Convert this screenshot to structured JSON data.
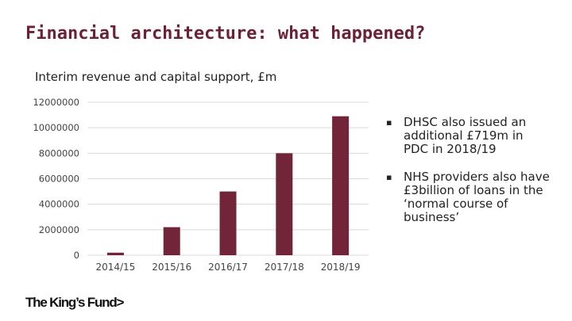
{
  "title": "Financial architecture: what happened?",
  "subtitle": "Interim revenue and capital support, £m",
  "bullets": [
    "DHSC also issued an additional £719m in PDC in 2018/19",
    "NHS providers also have £3billion of loans in the ‘normal course of business’"
  ],
  "logo": "The King’s Fund>",
  "colors": {
    "title": "#6b2237",
    "bar": "#722438",
    "grid": "#d9d9d9"
  },
  "chart_data": {
    "type": "bar",
    "categories": [
      "2014/15",
      "2015/16",
      "2016/17",
      "2017/18",
      "2018/19"
    ],
    "series": [
      {
        "values": [
          200000,
          2200000,
          5000000,
          8000000,
          10900000
        ]
      }
    ],
    "yticks": [
      "0",
      "2000000",
      "4000000",
      "6000000",
      "8000000",
      "10000000",
      "12000000"
    ],
    "ylim": [
      0,
      12000000
    ],
    "grid": true,
    "legend": "none"
  }
}
